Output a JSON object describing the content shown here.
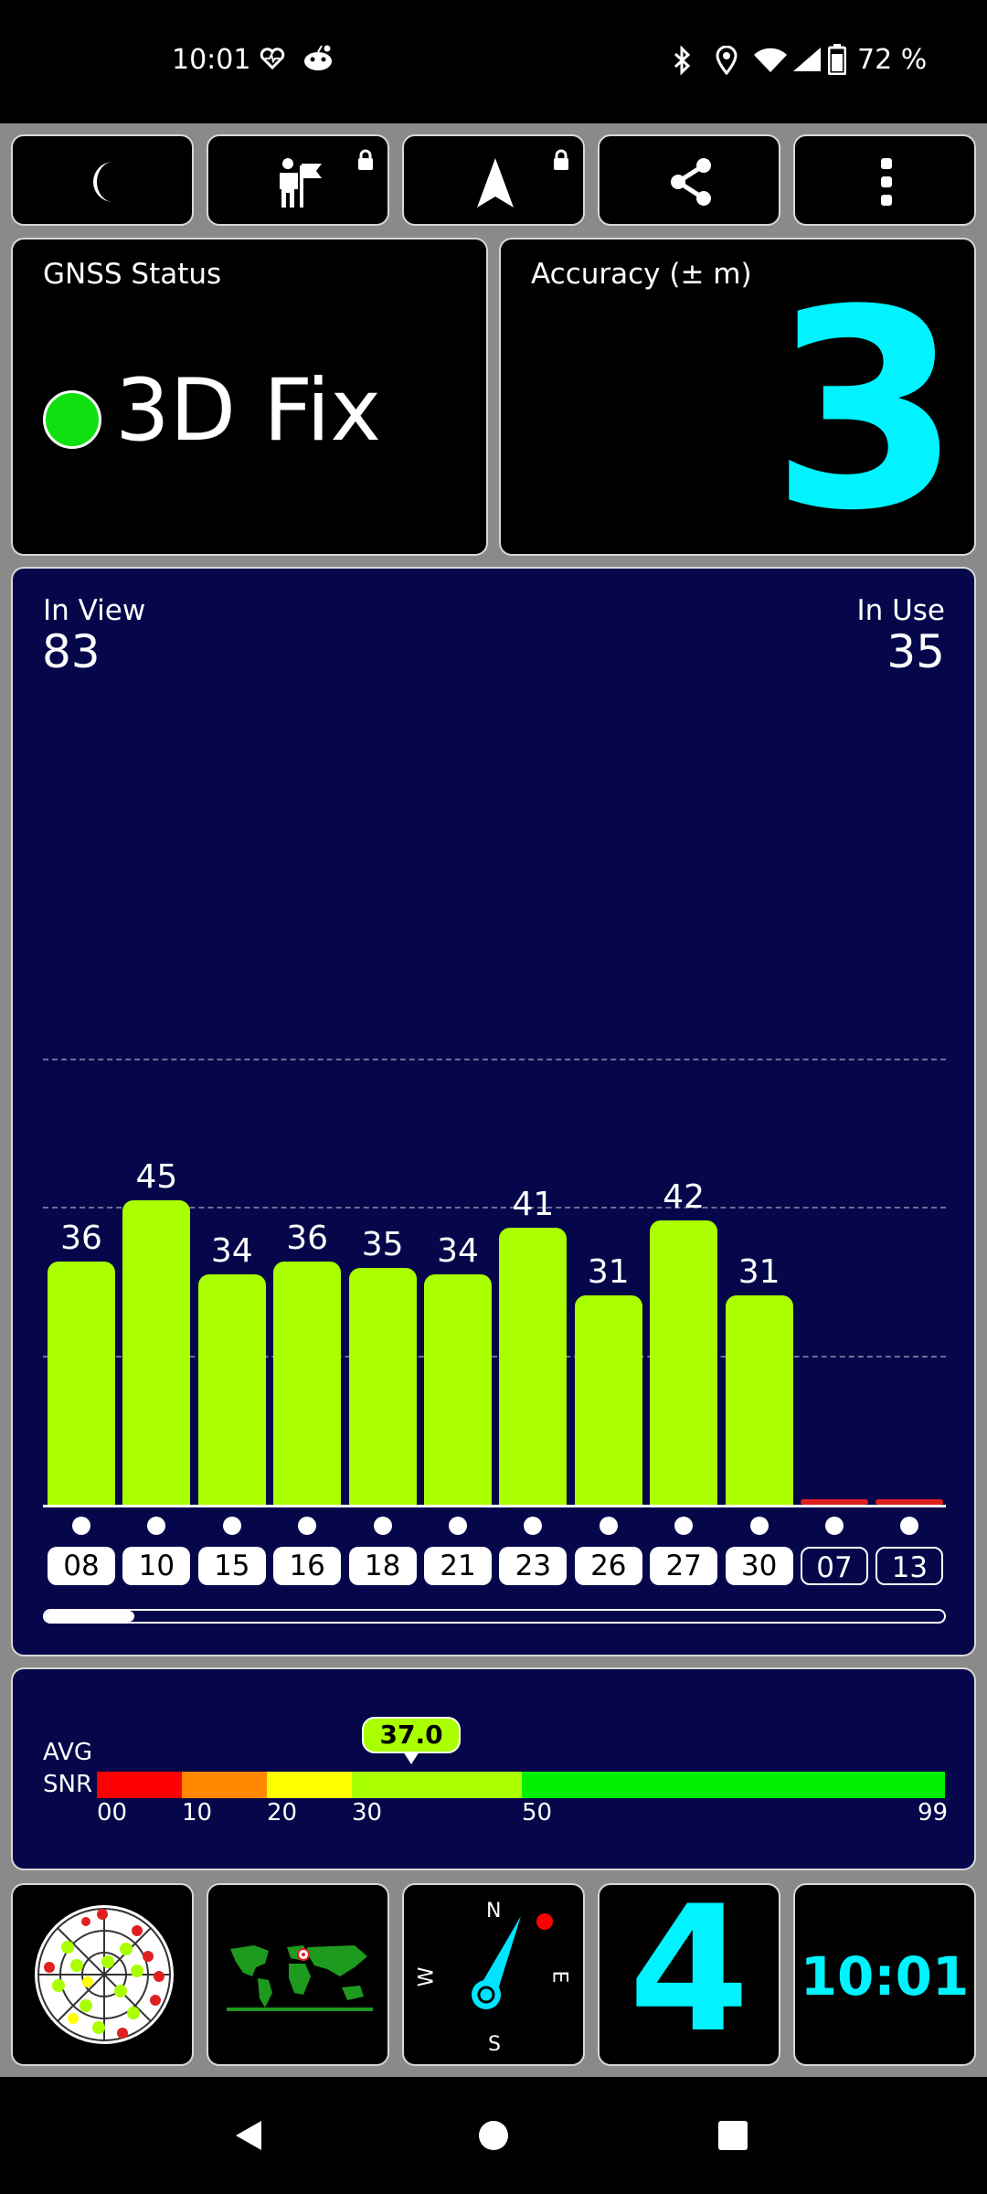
{
  "status_bar": {
    "time": "10:01",
    "battery_percent": "72 %",
    "icons": [
      "heart-monitor-icon",
      "reddit-icon",
      "bluetooth-icon",
      "location-icon",
      "wifi-icon",
      "signal-icon",
      "battery-icon"
    ]
  },
  "toolbar": {
    "buttons": [
      "night-mode-moon-icon",
      "explorer-flag-icon",
      "navigation-arrow-icon",
      "share-icon",
      "more-vertical-icon"
    ],
    "locked": [
      false,
      true,
      true,
      false,
      false
    ]
  },
  "gnss": {
    "label": "GNSS Status",
    "status": "3D Fix",
    "status_color": "#10e010"
  },
  "accuracy": {
    "label": "Accuracy (± m)",
    "value": "3",
    "color": "#00f3ff"
  },
  "satellites": {
    "in_view_label": "In View",
    "in_view": "83",
    "in_use_label": "In Use",
    "in_use": "35"
  },
  "chart_data": {
    "type": "bar",
    "categories": [
      "08",
      "10",
      "15",
      "16",
      "18",
      "21",
      "23",
      "26",
      "27",
      "30",
      "07",
      "13"
    ],
    "values": [
      36,
      45,
      34,
      36,
      35,
      34,
      41,
      31,
      42,
      31,
      0,
      0
    ],
    "labels": [
      "36",
      "45",
      "34",
      "36",
      "35",
      "34",
      "41",
      "31",
      "42",
      "31",
      "",
      ""
    ],
    "in_use": [
      true,
      true,
      true,
      true,
      true,
      true,
      true,
      true,
      true,
      true,
      false,
      false
    ],
    "bar_color": "#aaff00",
    "zero_color": "#e02020",
    "gridlines": [
      22,
      44,
      66
    ],
    "ylim": [
      0,
      66
    ]
  },
  "scroll": {
    "position_fraction": 0.1
  },
  "snr": {
    "label_line1": "AVG",
    "label_line2": "SNR",
    "avg": "37.0",
    "avg_value": 37.0,
    "scale_max": 99,
    "ticks": [
      "00",
      "10",
      "20",
      "30",
      "50",
      "99"
    ],
    "segments": [
      {
        "from": 0,
        "to": 10,
        "color": "#ff0000"
      },
      {
        "from": 10,
        "to": 20,
        "color": "#ff8800"
      },
      {
        "from": 20,
        "to": 30,
        "color": "#ffff00"
      },
      {
        "from": 30,
        "to": 50,
        "color": "#aaff00"
      },
      {
        "from": 50,
        "to": 99,
        "color": "#00ee00"
      }
    ]
  },
  "bottom_tiles": {
    "sky_view": "sky-plot-icon",
    "map": "world-map-icon",
    "compass": {
      "n": "N",
      "s": "S",
      "e": "E",
      "w": "W"
    },
    "sat_count": "4",
    "clock": "10:01"
  },
  "nav": [
    "back-icon",
    "home-icon",
    "recents-icon"
  ]
}
